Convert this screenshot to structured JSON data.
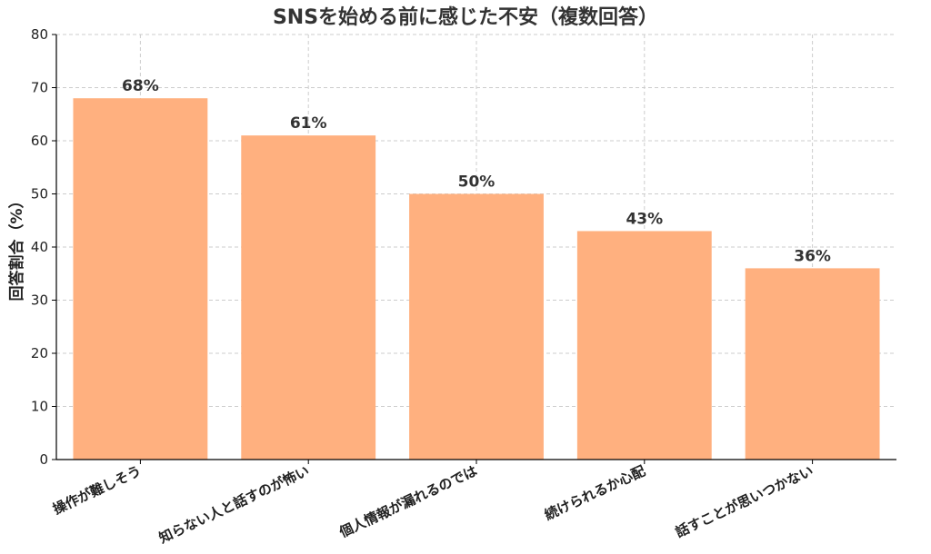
{
  "chart_data": {
    "type": "bar",
    "title": "SNSを始める前に感じた不安（複数回答）",
    "ylabel": "回答割合（%）",
    "xlabel": "",
    "categories": [
      "操作が難しそう",
      "知らない人と話すのが怖い",
      "個人情報が漏れるのでは",
      "続けられるか心配",
      "話すことが思いつかない"
    ],
    "values": [
      68,
      61,
      50,
      43,
      36
    ],
    "data_labels": [
      "68%",
      "61%",
      "50%",
      "43%",
      "36%"
    ],
    "ylim": [
      0,
      80
    ],
    "yticks": [
      0,
      10,
      20,
      30,
      40,
      50,
      60,
      70,
      80
    ],
    "grid": true,
    "bar_color": "#FFB07F",
    "legend": "none"
  }
}
